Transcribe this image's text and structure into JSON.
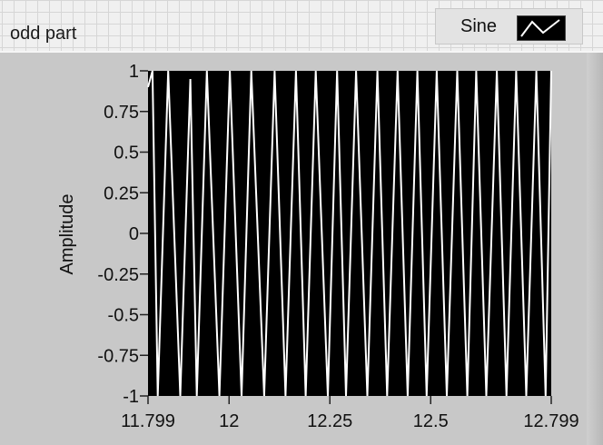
{
  "graph": {
    "label": "odd part",
    "legend": {
      "name": "Sine",
      "icon": "sine-line-icon"
    }
  },
  "colors": {
    "plot_background": "#000000",
    "trace": "#ffffff",
    "frame": "#c8c8c8",
    "panel": "#f0f0f0"
  },
  "chart_data": {
    "type": "line",
    "title": "",
    "xlabel": "",
    "ylabel": "Amplitude",
    "xlim": [
      11.799,
      12.799
    ],
    "ylim": [
      -1,
      1
    ],
    "x_ticks": [
      "11.799",
      "12",
      "12.25",
      "12.5",
      "12.799"
    ],
    "x_tick_values": [
      11.799,
      12,
      12.25,
      12.5,
      12.799
    ],
    "y_ticks": [
      "1",
      "0.75",
      "0.5",
      "0.25",
      "0",
      "-0.25",
      "-0.5",
      "-0.75",
      "-1"
    ],
    "y_tick_values": [
      1,
      0.75,
      0.5,
      0.25,
      0,
      -0.25,
      -0.5,
      -0.75,
      -1
    ],
    "grid": false,
    "legend_position": "top-right",
    "series": [
      {
        "name": "Sine",
        "x": [
          11.799,
          11.81,
          11.823,
          11.849,
          11.879,
          11.904,
          11.92,
          11.945,
          11.976,
          12.002,
          12.031,
          12.055,
          12.087,
          12.113,
          12.14,
          12.166,
          12.19,
          12.215,
          12.245,
          12.268,
          12.29,
          12.315,
          12.343,
          12.368,
          12.392,
          12.418,
          12.443,
          12.467,
          12.49,
          12.515,
          12.54,
          12.566,
          12.591,
          12.613,
          12.638,
          12.664,
          12.688,
          12.712,
          12.737,
          12.762,
          12.785,
          12.799
        ],
        "y": [
          0.9,
          1,
          -1,
          1,
          -1,
          0.95,
          -1,
          1,
          -1,
          1,
          -1,
          1,
          -1,
          1,
          -1,
          1,
          -1,
          1,
          -1,
          1,
          -1,
          1,
          -1,
          1,
          -1,
          1,
          -1,
          1,
          -1,
          1,
          -1,
          1,
          -1,
          1,
          -1,
          1,
          -1,
          1,
          -1,
          1,
          -1,
          1
        ]
      }
    ]
  }
}
